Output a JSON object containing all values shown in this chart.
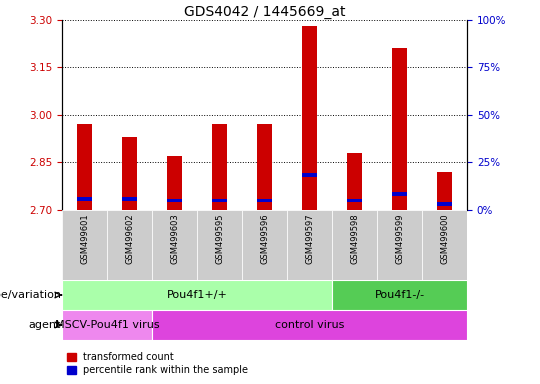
{
  "title": "GDS4042 / 1445669_at",
  "samples": [
    "GSM499601",
    "GSM499602",
    "GSM499603",
    "GSM499595",
    "GSM499596",
    "GSM499597",
    "GSM499598",
    "GSM499599",
    "GSM499600"
  ],
  "red_values": [
    2.97,
    2.93,
    2.87,
    2.97,
    2.97,
    3.28,
    2.88,
    3.21,
    2.82
  ],
  "blue_values": [
    2.735,
    2.735,
    2.73,
    2.73,
    2.73,
    2.81,
    2.73,
    2.75,
    2.72
  ],
  "y_min": 2.7,
  "y_max": 3.3,
  "y_ticks": [
    2.7,
    2.85,
    3.0,
    3.15,
    3.3
  ],
  "right_tick_values": [
    0,
    25,
    50,
    75,
    100
  ],
  "genotype_groups": [
    {
      "label": "Pou4f1+/+",
      "start": 0,
      "end": 6,
      "color": "#aaffaa"
    },
    {
      "label": "Pou4f1-/-",
      "start": 6,
      "end": 9,
      "color": "#55cc55"
    }
  ],
  "agent_groups": [
    {
      "label": "MSCV-Pou4f1 virus",
      "start": 0,
      "end": 2,
      "color": "#ee88ee"
    },
    {
      "label": "control virus",
      "start": 2,
      "end": 9,
      "color": "#dd44dd"
    }
  ],
  "legend_items": [
    {
      "color": "#cc0000",
      "label": "transformed count"
    },
    {
      "color": "#0000cc",
      "label": "percentile rank within the sample"
    }
  ],
  "bar_width": 0.35,
  "title_fontsize": 10,
  "tick_fontsize": 7.5,
  "left_tick_color": "#cc0000",
  "right_tick_color": "#0000cc",
  "xticklabel_bg": "#cccccc",
  "row_label_fontsize": 8,
  "row_content_fontsize": 8
}
